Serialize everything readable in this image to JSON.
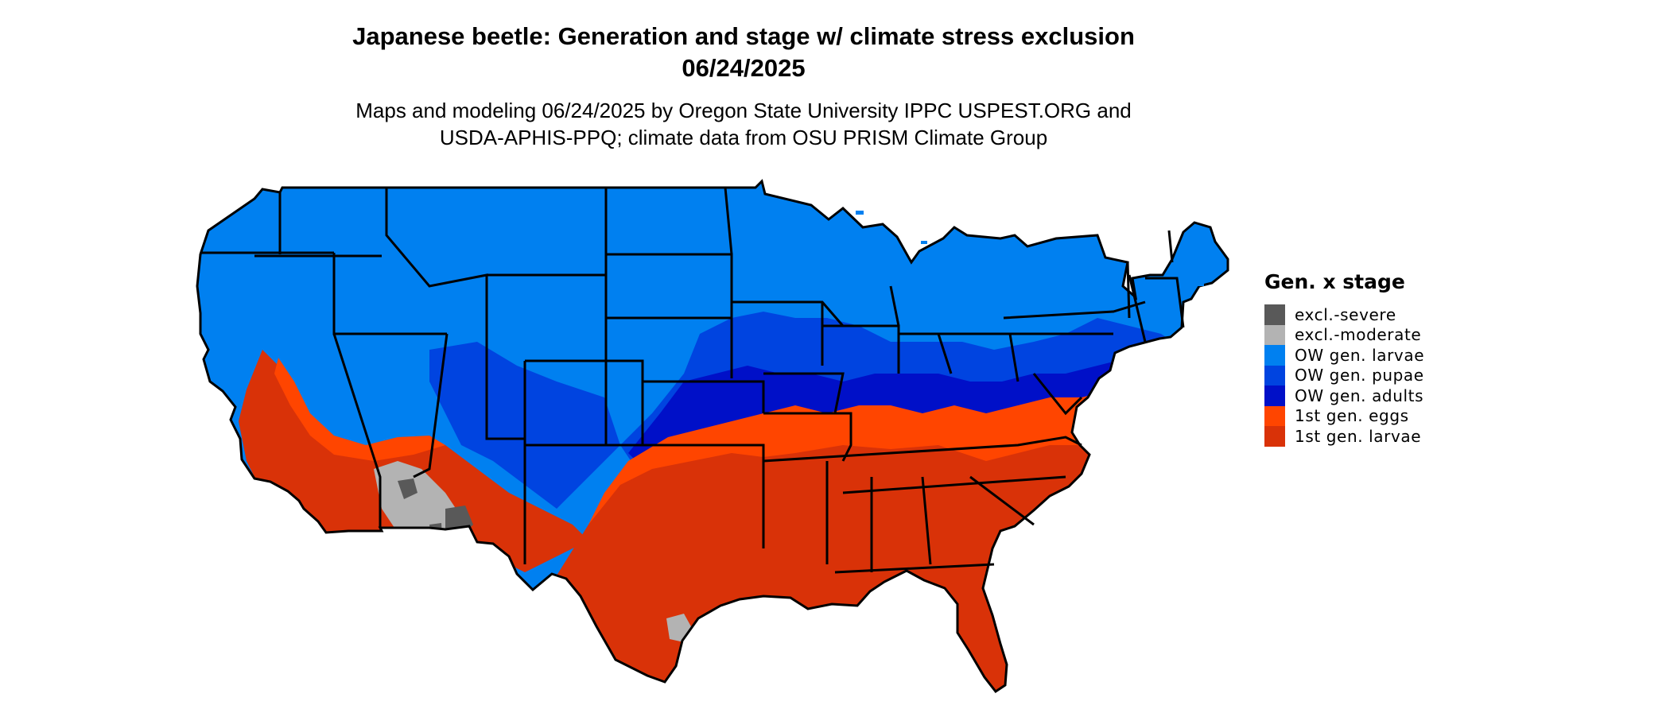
{
  "title_line1": "Japanese beetle: Generation and stage w/ climate stress exclusion",
  "title_line2": "06/24/2025",
  "subtitle_line1": "Maps and modeling 06/24/2025 by Oregon State University IPPC USPEST.ORG and",
  "subtitle_line2": "USDA-APHIS-PPQ; climate data from OSU PRISM Climate Group",
  "legend": {
    "title": "Gen. x stage",
    "items": [
      {
        "label": "excl.-severe",
        "color": "#595959"
      },
      {
        "label": "excl.-moderate",
        "color": "#b3b3b3"
      },
      {
        "label": "OW gen. larvae",
        "color": "#0080f0"
      },
      {
        "label": "OW gen. pupae",
        "color": "#0044e0"
      },
      {
        "label": "OW gen. adults",
        "color": "#0010c8"
      },
      {
        "label": "1st gen. eggs",
        "color": "#ff4500"
      },
      {
        "label": "1st gen. larvae",
        "color": "#d93208"
      }
    ]
  },
  "map": {
    "region": "Contiguous United States",
    "boundary_color": "#000000"
  }
}
